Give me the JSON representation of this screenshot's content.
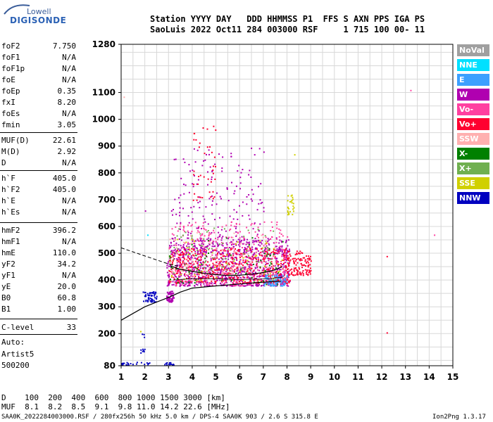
{
  "logo": {
    "top": "Lowell",
    "bottom": "DIGISONDE"
  },
  "header": {
    "line1": "Station YYYY DAY   DDD HHMMSS P1  FFS S AXN PPS IGA PS",
    "line2": "SaoLuis 2022 Oct11 284 003000 RSF     1 715 100 00- 11"
  },
  "params": [
    {
      "label": "foF2",
      "value": "7.750"
    },
    {
      "label": "foF1",
      "value": "N/A"
    },
    {
      "label": "foF1p",
      "value": "N/A"
    },
    {
      "label": "foE",
      "value": "N/A"
    },
    {
      "label": "foEp",
      "value": "0.35"
    },
    {
      "label": "fxI",
      "value": "8.20"
    },
    {
      "label": "foEs",
      "value": "N/A"
    },
    {
      "label": "fmin",
      "value": "3.05"
    },
    {
      "label": "MUF(D)",
      "value": "22.61"
    },
    {
      "label": "M(D)",
      "value": "2.92"
    },
    {
      "label": "D",
      "value": "N/A"
    },
    {
      "label": "h`F",
      "value": "405.0"
    },
    {
      "label": "h`F2",
      "value": "405.0"
    },
    {
      "label": "h`E",
      "value": "N/A"
    },
    {
      "label": "h`Es",
      "value": "N/A"
    },
    {
      "label": "hmF2",
      "value": "396.2"
    },
    {
      "label": "hmF1",
      "value": "N/A"
    },
    {
      "label": "hmE",
      "value": "110.0"
    },
    {
      "label": "yF2",
      "value": "34.2"
    },
    {
      "label": "yF1",
      "value": "N/A"
    },
    {
      "label": "yE",
      "value": "20.0"
    },
    {
      "label": "B0",
      "value": "60.8"
    },
    {
      "label": "B1",
      "value": "1.00"
    },
    {
      "label": "C-level",
      "value": "33"
    }
  ],
  "auto": {
    "line1": "Auto:",
    "line2": "Artist5",
    "line3": "500200"
  },
  "muf_table": {
    "d_row": "D    100  200  400  600  800 1000 1500 3000 [km]",
    "muf_row": "MUF  8.1  8.2  8.5  9.1  9.8 11.0 14.2 22.6 [MHz]"
  },
  "footer": {
    "left": "SAA0K_2022284003000.RSF / 280fx256h 50 kHz 5.0 km / DPS-4 SAA0K 903 / 2.6 S 315.8 E",
    "right": "Ion2Png 1.3.17"
  },
  "legend": [
    {
      "label": "NoVal",
      "color": "#a0a0a0"
    },
    {
      "label": "NNE",
      "color": "#00e0ff"
    },
    {
      "label": "E",
      "color": "#3ca0ff"
    },
    {
      "label": "W",
      "color": "#b000b0"
    },
    {
      "label": "Vo-",
      "color": "#ff40a0"
    },
    {
      "label": "Vo+",
      "color": "#ff0030"
    },
    {
      "label": "SSW",
      "color": "#ffb0b0"
    },
    {
      "label": "X-",
      "color": "#008000"
    },
    {
      "label": "X+",
      "color": "#70b050"
    },
    {
      "label": "SSE",
      "color": "#d0d000"
    },
    {
      "label": "NNW",
      "color": "#0000c0"
    }
  ],
  "chart_data": {
    "type": "scatter",
    "x_ticks": [
      1,
      2,
      3,
      4,
      5,
      6,
      7,
      8,
      9,
      10,
      11,
      12,
      13,
      14,
      15
    ],
    "y_ticks": [
      80,
      200,
      300,
      400,
      500,
      600,
      700,
      800,
      900,
      1000,
      1100,
      1280
    ],
    "xlim": [
      1,
      15
    ],
    "ylim": [
      80,
      1280
    ],
    "grid": true,
    "xlabel": "",
    "ylabel": "",
    "echo_clusters": [
      {
        "x": [
          2.9,
          3.2
        ],
        "y": [
          320,
          360
        ],
        "color": "#b000b0",
        "density": 60
      },
      {
        "x": [
          2.9,
          8.1
        ],
        "y": [
          380,
          560
        ],
        "color": "#b000b0",
        "density": 900
      },
      {
        "x": [
          3.0,
          8.1
        ],
        "y": [
          390,
          520
        ],
        "color": "#ff0030",
        "density": 500
      },
      {
        "x": [
          3.0,
          8.0
        ],
        "y": [
          380,
          620
        ],
        "color": "#ff40a0",
        "density": 350
      },
      {
        "x": [
          3.0,
          7.5
        ],
        "y": [
          420,
          600
        ],
        "color": "#70b050",
        "density": 80
      },
      {
        "x": [
          3.0,
          7.5
        ],
        "y": [
          420,
          580
        ],
        "color": "#ffb0b0",
        "density": 100
      },
      {
        "x": [
          3.0,
          7.8
        ],
        "y": [
          400,
          560
        ],
        "color": "#d0d000",
        "density": 60
      },
      {
        "x": [
          3.0,
          7.8
        ],
        "y": [
          380,
          560
        ],
        "color": "#008000",
        "density": 60
      },
      {
        "x": [
          3.1,
          7.0
        ],
        "y": [
          500,
          900
        ],
        "color": "#b000b0",
        "density": 200
      },
      {
        "x": [
          4.0,
          5.0
        ],
        "y": [
          700,
          1000
        ],
        "color": "#ff0030",
        "density": 40
      },
      {
        "x": [
          7.0,
          8.0
        ],
        "y": [
          380,
          420
        ],
        "color": "#3ca0ff",
        "density": 80
      },
      {
        "x": [
          8.0,
          9.0
        ],
        "y": [
          420,
          510
        ],
        "color": "#ff0030",
        "density": 120
      },
      {
        "x": [
          8.0,
          8.3
        ],
        "y": [
          640,
          720
        ],
        "color": "#d0d000",
        "density": 25
      },
      {
        "x": [
          1.9,
          2.5
        ],
        "y": [
          320,
          360
        ],
        "color": "#0000c0",
        "density": 60
      },
      {
        "x": [
          1.0,
          2.2
        ],
        "y": [
          85,
          95
        ],
        "color": "#0000c0",
        "density": 20
      },
      {
        "x": [
          2.8,
          3.2
        ],
        "y": [
          85,
          95
        ],
        "color": "#0000c0",
        "density": 12
      },
      {
        "x": [
          1.8,
          2.0
        ],
        "y": [
          130,
          200
        ],
        "color": "#0000c0",
        "density": 10
      }
    ],
    "echo_points": [
      {
        "x": 12.2,
        "y": 490,
        "color": "#ff0030"
      },
      {
        "x": 12.2,
        "y": 205,
        "color": "#ff0030"
      },
      {
        "x": 13.2,
        "y": 1110,
        "color": "#ff40a0"
      },
      {
        "x": 14.2,
        "y": 570,
        "color": "#ff40a0"
      },
      {
        "x": 2.0,
        "y": 660,
        "color": "#b000b0"
      },
      {
        "x": 2.1,
        "y": 570,
        "color": "#00e0ff"
      },
      {
        "x": 1.8,
        "y": 210,
        "color": "#d0d000"
      },
      {
        "x": 8.3,
        "y": 870,
        "color": "#d0d000"
      },
      {
        "x": 7.0,
        "y": 880,
        "color": "#b000b0"
      },
      {
        "x": 1.1,
        "y": 1085,
        "color": "#ffb0b0"
      }
    ],
    "profile_solid": {
      "x": [
        1.0,
        1.5,
        2.0,
        2.5,
        3.0,
        3.5,
        4.0,
        5.0,
        6.0,
        7.0,
        7.75
      ],
      "y": [
        250,
        275,
        300,
        318,
        335,
        355,
        370,
        378,
        385,
        392,
        396
      ]
    },
    "profile_dashed": {
      "x": [
        1.0,
        1.5,
        2.0,
        2.5,
        3.0,
        3.5
      ],
      "y": [
        520,
        505,
        490,
        475,
        460,
        450
      ]
    },
    "trace_black": {
      "x": [
        3.1,
        3.5,
        4.0,
        4.5,
        5.0,
        5.5,
        6.0,
        6.5,
        7.0,
        7.5,
        7.8
      ],
      "y": [
        452,
        440,
        432,
        425,
        420,
        417,
        418,
        422,
        428,
        438,
        450
      ]
    },
    "trace_thin": {
      "x": [
        3.2,
        4.0,
        5.0,
        6.0,
        7.0,
        7.8
      ],
      "y": [
        400,
        405,
        405,
        402,
        404,
        410
      ]
    }
  }
}
